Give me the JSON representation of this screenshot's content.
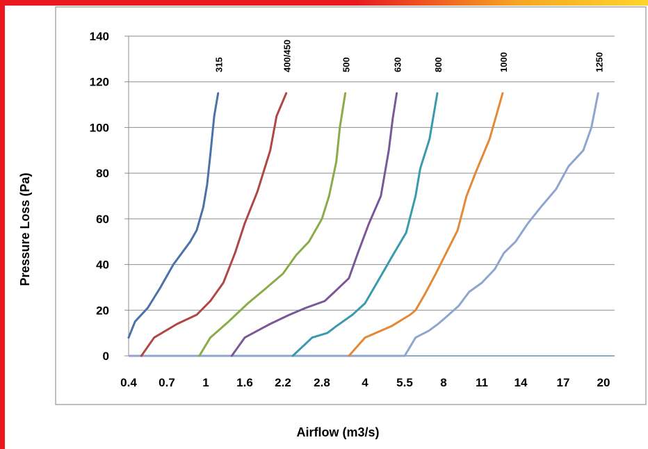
{
  "chart_data": {
    "type": "line",
    "ylabel": "Pressure Loss (Pa)",
    "xlabel": "Airflow (m3/s)",
    "ylim": [
      0,
      140
    ],
    "yticks": [
      "0",
      "20",
      "40",
      "60",
      "80",
      "100",
      "120",
      "140"
    ],
    "x_tick_labels": [
      "0.4",
      "0.7",
      "1",
      "1.6",
      "2.2",
      "2.8",
      "4",
      "5.5",
      "8",
      "11",
      "14",
      "17",
      "20"
    ],
    "grid": "horizontal",
    "series": [
      {
        "name": "315",
        "color": "#4a72a8",
        "points": [
          [
            0.4,
            8
          ],
          [
            0.45,
            15
          ],
          [
            0.55,
            21
          ],
          [
            0.65,
            30
          ],
          [
            0.75,
            40
          ],
          [
            0.88,
            50
          ],
          [
            0.93,
            55
          ],
          [
            0.98,
            65
          ],
          [
            1.02,
            75
          ],
          [
            1.07,
            88
          ],
          [
            1.13,
            105
          ],
          [
            1.19,
            115
          ]
        ]
      },
      {
        "name": "400/450",
        "color": "#b04743",
        "points": [
          [
            0.5,
            0
          ],
          [
            0.6,
            8
          ],
          [
            0.78,
            14
          ],
          [
            0.93,
            18
          ],
          [
            1.07,
            24
          ],
          [
            1.27,
            32
          ],
          [
            1.45,
            45
          ],
          [
            1.6,
            58
          ],
          [
            1.8,
            72
          ],
          [
            2.0,
            90
          ],
          [
            2.1,
            105
          ],
          [
            2.25,
            115
          ]
        ]
      },
      {
        "name": "500",
        "color": "#8aab48",
        "points": [
          [
            0.95,
            0
          ],
          [
            1.07,
            8
          ],
          [
            1.35,
            15
          ],
          [
            1.65,
            23
          ],
          [
            1.95,
            30
          ],
          [
            2.2,
            36
          ],
          [
            2.4,
            44
          ],
          [
            2.6,
            50
          ],
          [
            2.8,
            60
          ],
          [
            3.0,
            70
          ],
          [
            3.2,
            85
          ],
          [
            3.3,
            100
          ],
          [
            3.45,
            115
          ]
        ]
      },
      {
        "name": "630",
        "color": "#7a5898",
        "points": [
          [
            1.4,
            0
          ],
          [
            1.6,
            8
          ],
          [
            2.0,
            14
          ],
          [
            2.3,
            18
          ],
          [
            2.55,
            21
          ],
          [
            2.88,
            24
          ],
          [
            3.15,
            28
          ],
          [
            3.55,
            34
          ],
          [
            3.8,
            45
          ],
          [
            4.15,
            58
          ],
          [
            4.6,
            70
          ],
          [
            4.9,
            90
          ],
          [
            5.05,
            104
          ],
          [
            5.2,
            115
          ]
        ]
      },
      {
        "name": "800",
        "color": "#3a9aad",
        "points": [
          [
            2.35,
            0
          ],
          [
            2.65,
            8
          ],
          [
            2.95,
            10
          ],
          [
            3.2,
            13
          ],
          [
            3.65,
            18
          ],
          [
            4.0,
            23
          ],
          [
            4.5,
            33
          ],
          [
            5.05,
            44
          ],
          [
            5.6,
            54
          ],
          [
            6.2,
            70
          ],
          [
            6.5,
            82
          ],
          [
            7.1,
            95
          ],
          [
            7.6,
            115
          ]
        ]
      },
      {
        "name": "1000",
        "color": "#e38936",
        "points": [
          [
            3.55,
            0
          ],
          [
            4.0,
            8
          ],
          [
            5.0,
            13
          ],
          [
            5.85,
            18
          ],
          [
            6.2,
            20
          ],
          [
            6.8,
            27
          ],
          [
            7.5,
            36
          ],
          [
            8.2,
            45
          ],
          [
            9.1,
            55
          ],
          [
            9.8,
            70
          ],
          [
            10.5,
            80
          ],
          [
            11.6,
            95
          ],
          [
            12.6,
            115
          ]
        ]
      },
      {
        "name": "1250",
        "color": "#8ea6cf",
        "points": [
          [
            5.5,
            0
          ],
          [
            6.2,
            8
          ],
          [
            7.05,
            11
          ],
          [
            7.65,
            14
          ],
          [
            8.2,
            17
          ],
          [
            9.2,
            22
          ],
          [
            10.0,
            28
          ],
          [
            11.0,
            32
          ],
          [
            12.0,
            38
          ],
          [
            12.7,
            45
          ],
          [
            13.6,
            50
          ],
          [
            14.5,
            58
          ],
          [
            15.4,
            65
          ],
          [
            16.5,
            73
          ],
          [
            17.4,
            83
          ],
          [
            18.5,
            90
          ],
          [
            19.1,
            100
          ],
          [
            19.6,
            115
          ]
        ]
      }
    ],
    "baseline_to_x": 20.2
  }
}
